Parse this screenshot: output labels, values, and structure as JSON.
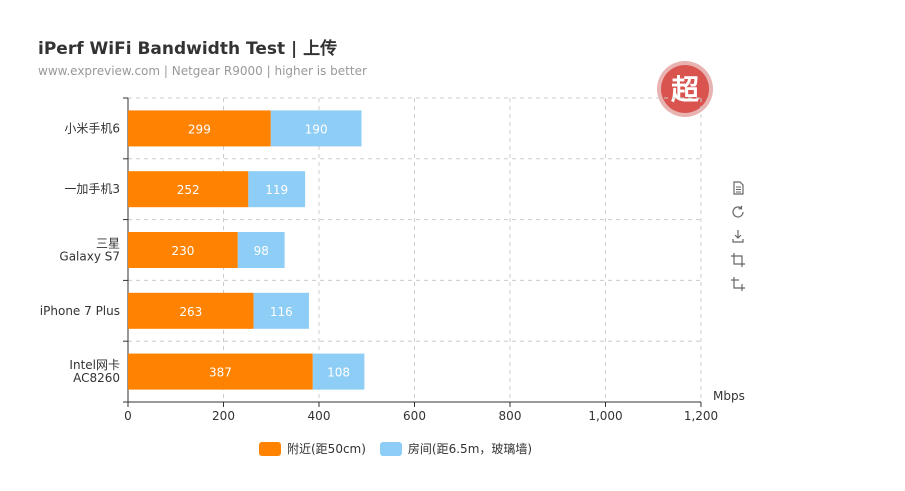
{
  "title": "iPerf WiFi Bandwidth Test | 上传",
  "subtitle": "www.expreview.com | Netgear R9000 | higher is better",
  "logo": {
    "text": "超",
    "color": "#d9534f"
  },
  "toolbox": [
    {
      "name": "data-view-icon"
    },
    {
      "name": "restore-icon"
    },
    {
      "name": "save-image-icon"
    },
    {
      "name": "crop-icon"
    },
    {
      "name": "crop-reset-icon"
    }
  ],
  "chart_data": {
    "type": "bar",
    "orientation": "horizontal",
    "stacked": true,
    "categories": [
      "小米手机6",
      "一加手机3",
      "三星 Galaxy S7",
      "iPhone 7 Plus",
      "Intel网卡 AC8260"
    ],
    "category_lines": [
      [
        "小米手机6"
      ],
      [
        "一加手机3"
      ],
      [
        "三星",
        "Galaxy S7"
      ],
      [
        "iPhone 7 Plus"
      ],
      [
        "Intel网卡",
        "AC8260"
      ]
    ],
    "series": [
      {
        "name": "附近(距50cm)",
        "color": "#ff8200",
        "values": [
          299,
          252,
          230,
          263,
          387
        ]
      },
      {
        "name": "房间(距6.5m，玻璃墙)",
        "color": "#8ecdf5",
        "values": [
          190,
          119,
          98,
          116,
          108
        ]
      }
    ],
    "x_unit": "Mbps",
    "xlim": [
      0,
      1200
    ],
    "x_ticks": [
      0,
      200,
      400,
      600,
      800,
      1000,
      1200
    ],
    "x_tick_labels": [
      "0",
      "200",
      "400",
      "600",
      "800",
      "1,000",
      "1,200"
    ],
    "grid": true,
    "legend_position": "bottom"
  }
}
